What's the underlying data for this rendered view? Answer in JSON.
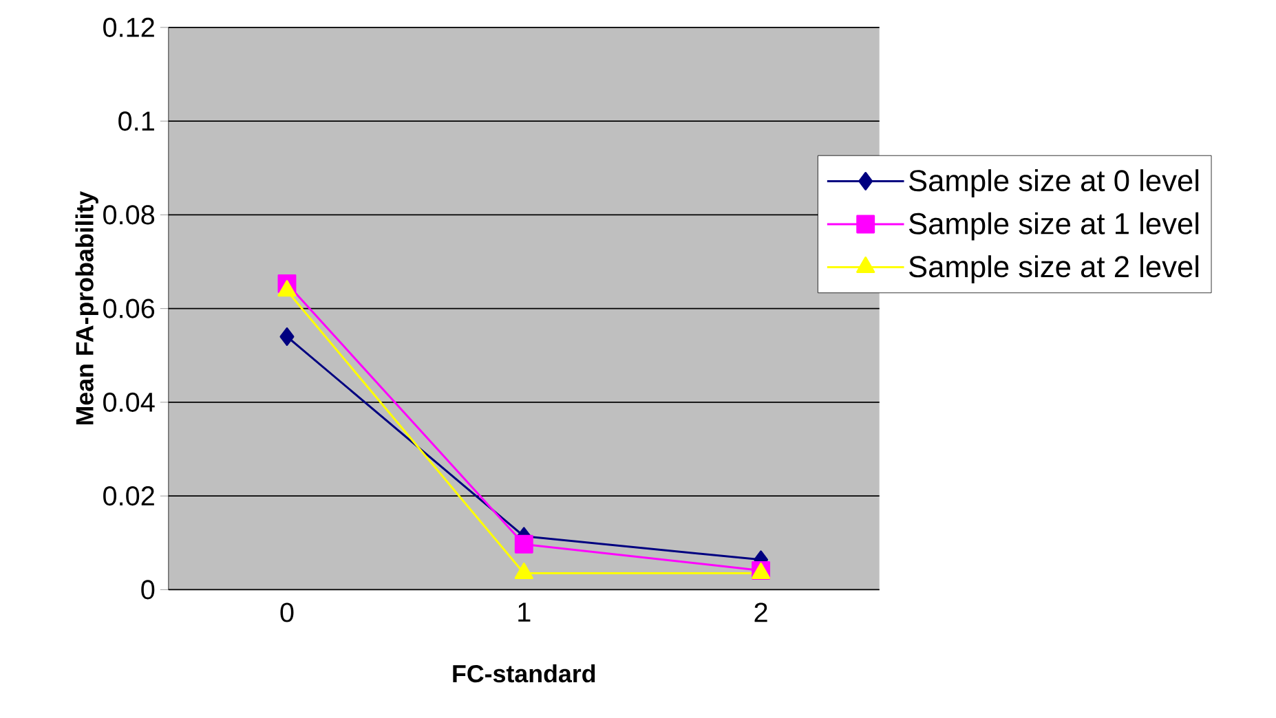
{
  "chart_data": {
    "type": "line",
    "xlabel": "FC-standard",
    "ylabel": "Mean FA-probability",
    "categories": [
      "0",
      "1",
      "2"
    ],
    "series": [
      {
        "name": "Sample size at 0 level",
        "color": "#000080",
        "marker": "diamond",
        "values": [
          0.054,
          0.0114,
          0.0064
        ]
      },
      {
        "name": "Sample size at 1 level",
        "color": "#ff00ff",
        "marker": "square",
        "values": [
          0.0653,
          0.0097,
          0.0041
        ]
      },
      {
        "name": "Sample size at 2 level",
        "color": "#ffff00",
        "marker": "triangle",
        "values": [
          0.0638,
          0.0035,
          0.0035
        ]
      }
    ],
    "ylim": [
      0,
      0.12
    ],
    "yticks": [
      0,
      0.02,
      0.04,
      0.06,
      0.08,
      0.1,
      0.12
    ],
    "grid": "y",
    "legend": "right",
    "line_style": "solid"
  }
}
